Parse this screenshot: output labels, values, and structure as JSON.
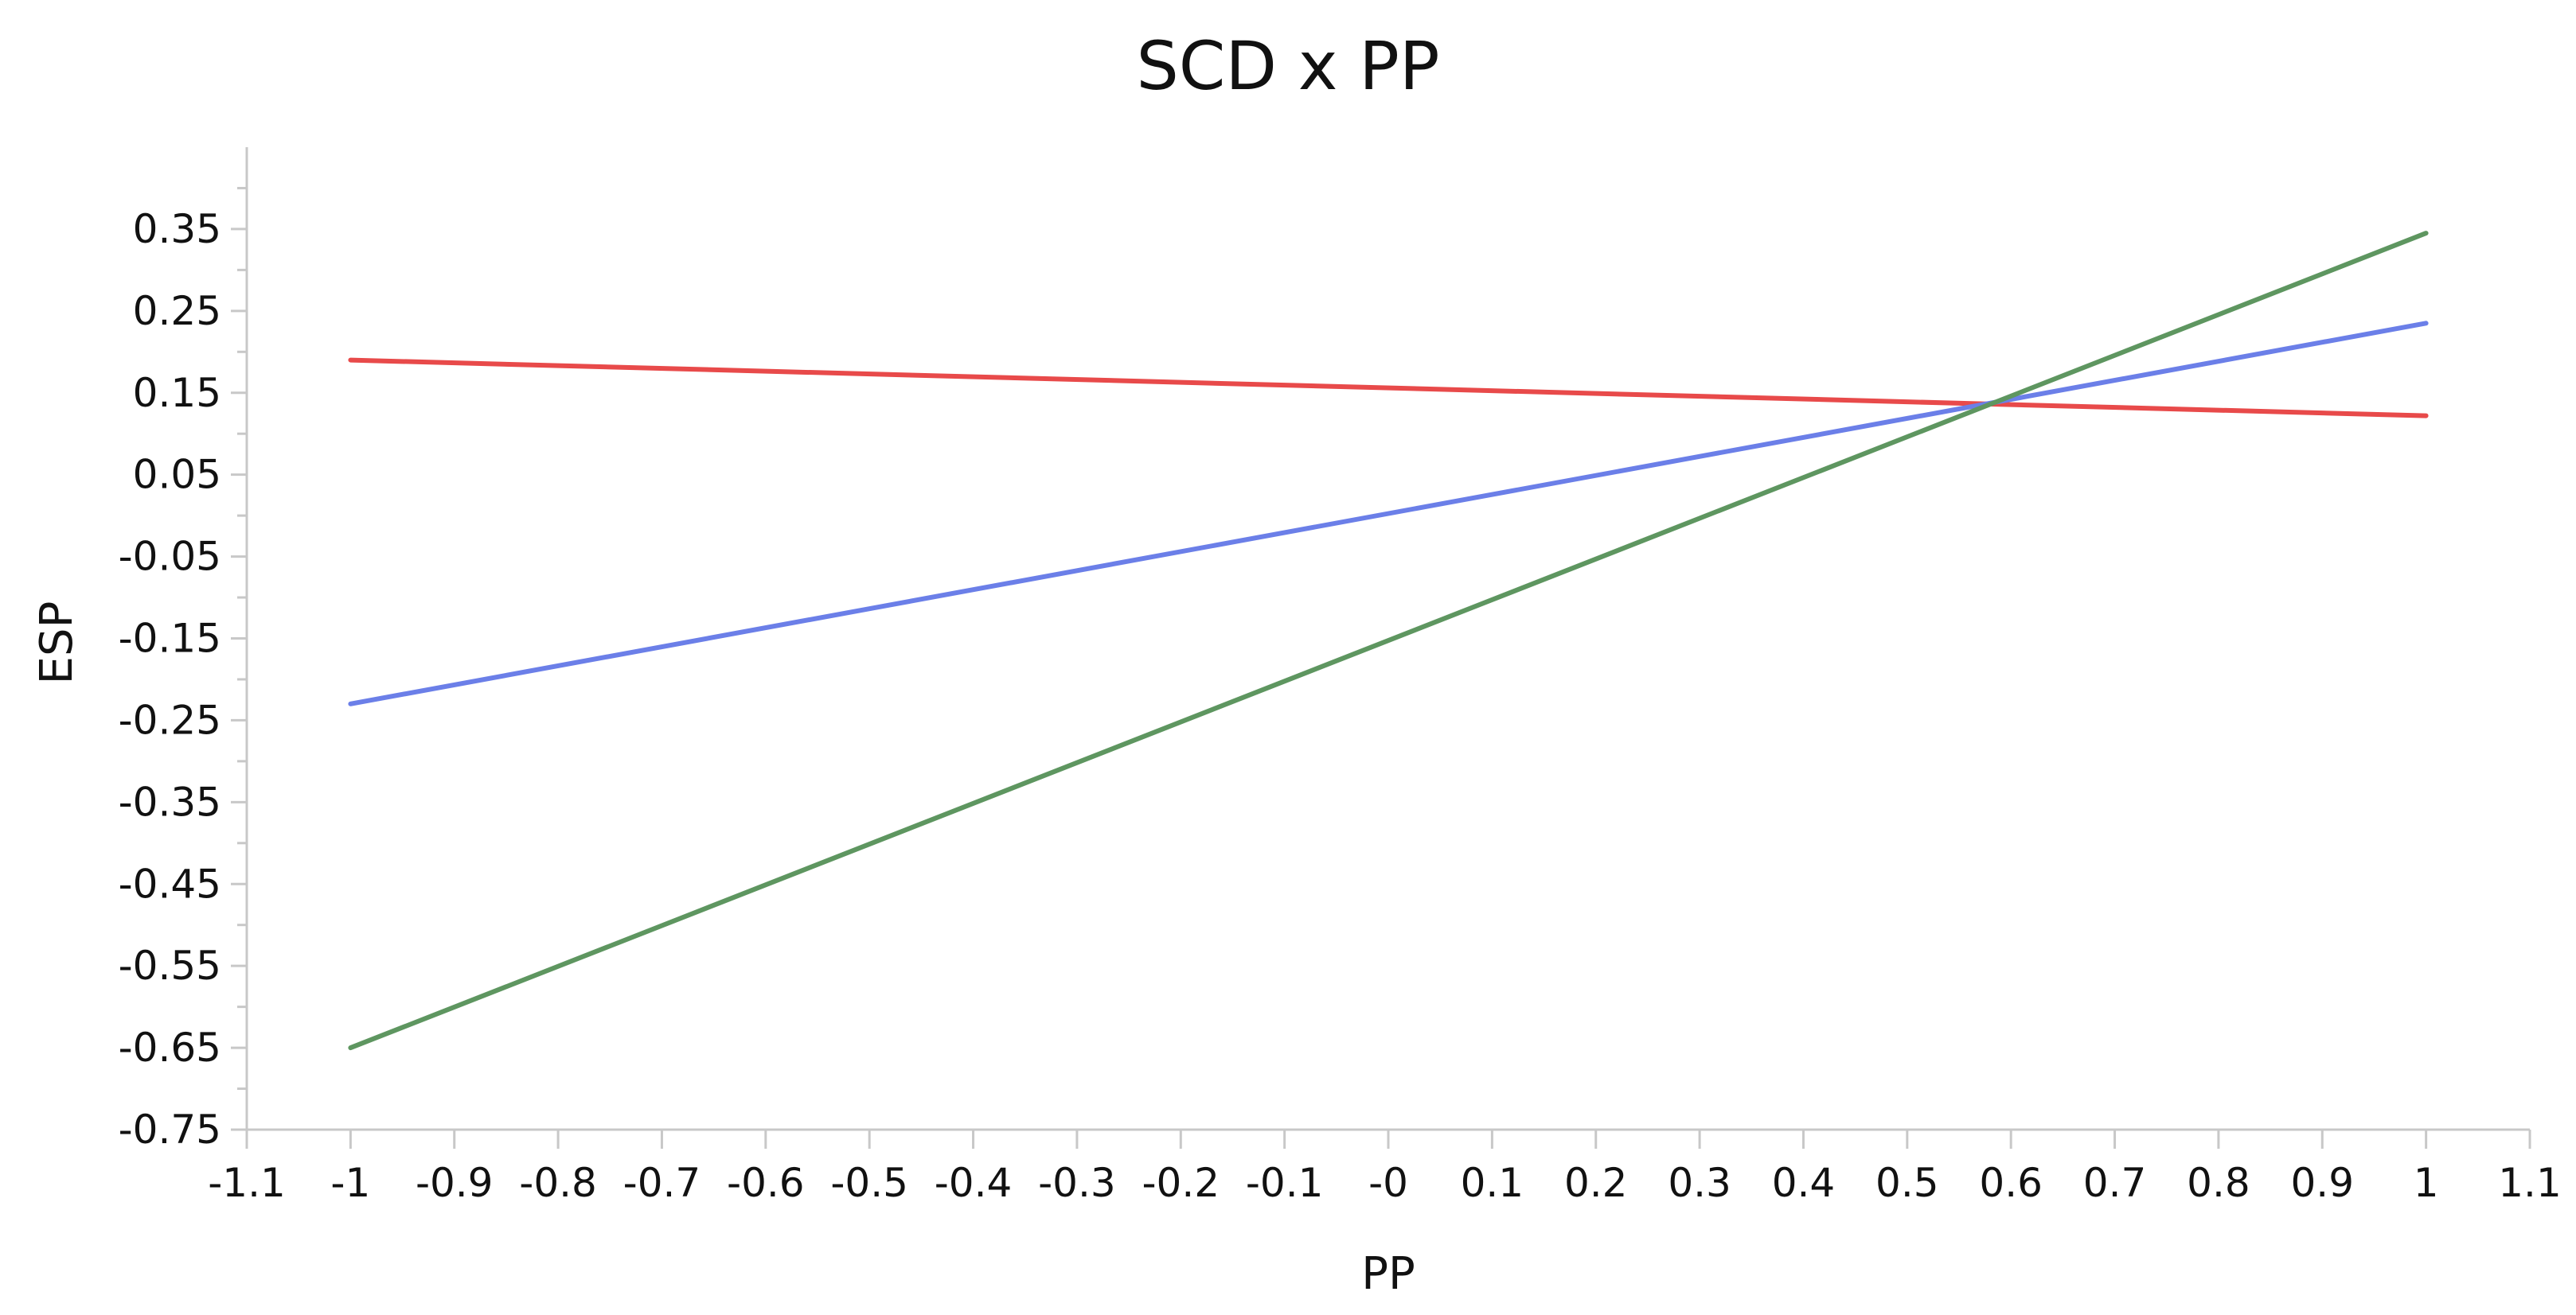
{
  "chart_data": {
    "type": "line",
    "title": "SCD x PP",
    "xlabel": "PP",
    "ylabel": "ESP",
    "xlim": [
      -1.1,
      1.1
    ],
    "ylim": [
      -0.75,
      0.45
    ],
    "x_ticks": [
      -1.1,
      -1,
      -0.9,
      -0.8,
      -0.7,
      -0.6,
      -0.5,
      -0.4,
      -0.3,
      -0.2,
      -0.1,
      0,
      0.1,
      0.2,
      0.3,
      0.4,
      0.5,
      0.6,
      0.7,
      0.8,
      0.9,
      1,
      1.1
    ],
    "x_tick_labels": [
      "-1.1",
      "-1",
      "-0.9",
      "-0.8",
      "-0.7",
      "-0.6",
      "-0.5",
      "-0.4",
      "-0.3",
      "-0.2",
      "-0.1",
      "-0",
      "0.1",
      "0.2",
      "0.3",
      "0.4",
      "0.5",
      "0.6",
      "0.7",
      "0.8",
      "0.9",
      "1",
      "1.1"
    ],
    "y_ticks": [
      0.35,
      0.25,
      0.15,
      0.05,
      -0.05,
      -0.15,
      -0.25,
      -0.35,
      -0.45,
      -0.55,
      -0.65,
      -0.75
    ],
    "y_tick_labels": [
      "0.35",
      "0.25",
      "0.15",
      "0.05",
      "-0.05",
      "-0.15",
      "-0.25",
      "-0.35",
      "-0.45",
      "-0.55",
      "-0.65",
      "-0.75"
    ],
    "y_minor_ticks": [
      0.4,
      0.3,
      0.2,
      0.1,
      0,
      -0.1,
      -0.2,
      -0.3,
      -0.4,
      -0.5,
      -0.6,
      -0.7
    ],
    "grid": false,
    "legend": "none",
    "series": [
      {
        "color": "#e84a4a",
        "x": [
          -1,
          1
        ],
        "y": [
          0.19,
          0.122
        ]
      },
      {
        "color": "#6b7fe8",
        "x": [
          -1,
          1
        ],
        "y": [
          -0.23,
          0.235
        ]
      },
      {
        "color": "#5e9660",
        "x": [
          -1,
          1
        ],
        "y": [
          -0.65,
          0.345
        ]
      }
    ]
  }
}
